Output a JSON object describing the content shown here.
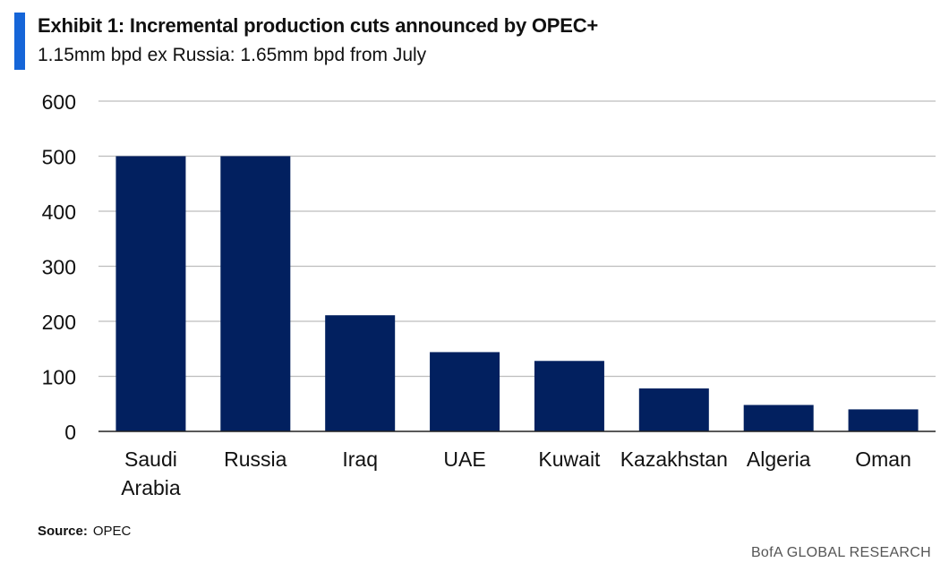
{
  "colors": {
    "accent": "#1565d8",
    "bar": "#02205f",
    "grid": "#bdbdbd",
    "axis": "#222222",
    "text": "#111111"
  },
  "chart_data": {
    "type": "bar",
    "title": "Exhibit 1: Incremental production cuts announced by OPEC+",
    "subtitle": "1.15mm bpd ex Russia: 1.65mm bpd from July",
    "categories": [
      [
        "Saudi",
        "Arabia"
      ],
      [
        "Russia"
      ],
      [
        "Iraq"
      ],
      [
        "UAE"
      ],
      [
        "Kuwait"
      ],
      [
        "Kazakhstan"
      ],
      [
        "Algeria"
      ],
      [
        "Oman"
      ]
    ],
    "values": [
      500,
      500,
      211,
      144,
      128,
      78,
      48,
      40
    ],
    "ylim": [
      0,
      600
    ],
    "yticks": [
      0,
      100,
      200,
      300,
      400,
      500,
      600
    ],
    "xlabel": "",
    "ylabel": "",
    "grid": true
  },
  "footer": {
    "source_label": "Source:",
    "source_value": "OPEC",
    "brand": "BofA GLOBAL RESEARCH"
  }
}
